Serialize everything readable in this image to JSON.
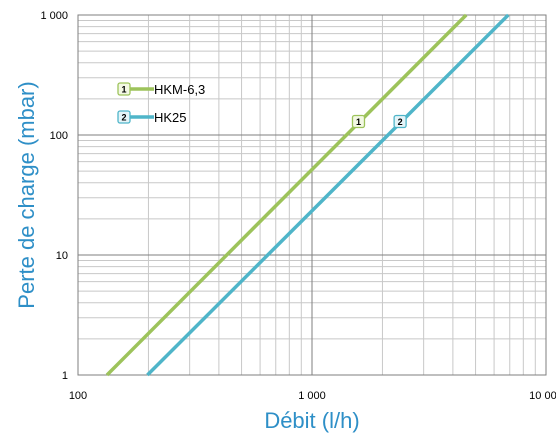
{
  "chart_data": {
    "type": "line",
    "x_scale": "log",
    "y_scale": "log",
    "xlim": [
      100,
      10000
    ],
    "ylim": [
      1,
      1000
    ],
    "xlabel": "Débit (l/h)",
    "ylabel": "Perte de charge (mbar)",
    "x_ticks": [
      {
        "value": 100,
        "label": "100"
      },
      {
        "value": 1000,
        "label": "1 000"
      },
      {
        "value": 10000,
        "label": "10 000"
      }
    ],
    "y_ticks": [
      {
        "value": 1,
        "label": "1"
      },
      {
        "value": 10,
        "label": "10"
      },
      {
        "value": 100,
        "label": "100"
      },
      {
        "value": 1000,
        "label": "1 000"
      }
    ],
    "grid": true,
    "legend_position": "top-left",
    "series": [
      {
        "name": "HKM-6,3",
        "badge": "1",
        "color": "#9dc35b",
        "badge_fill": "#f3f8e4",
        "badge_stroke": "#9dc35b",
        "points": [
          [
            133,
            1
          ],
          [
            4560,
            1000
          ]
        ],
        "marker": [
          1580,
          120
        ]
      },
      {
        "name": "HK25",
        "badge": "2",
        "color": "#4fb5c9",
        "badge_fill": "#e4f4f8",
        "badge_stroke": "#4fb5c9",
        "points": [
          [
            198,
            1
          ],
          [
            6900,
            1000
          ]
        ],
        "marker": [
          2380,
          120
        ]
      }
    ]
  }
}
